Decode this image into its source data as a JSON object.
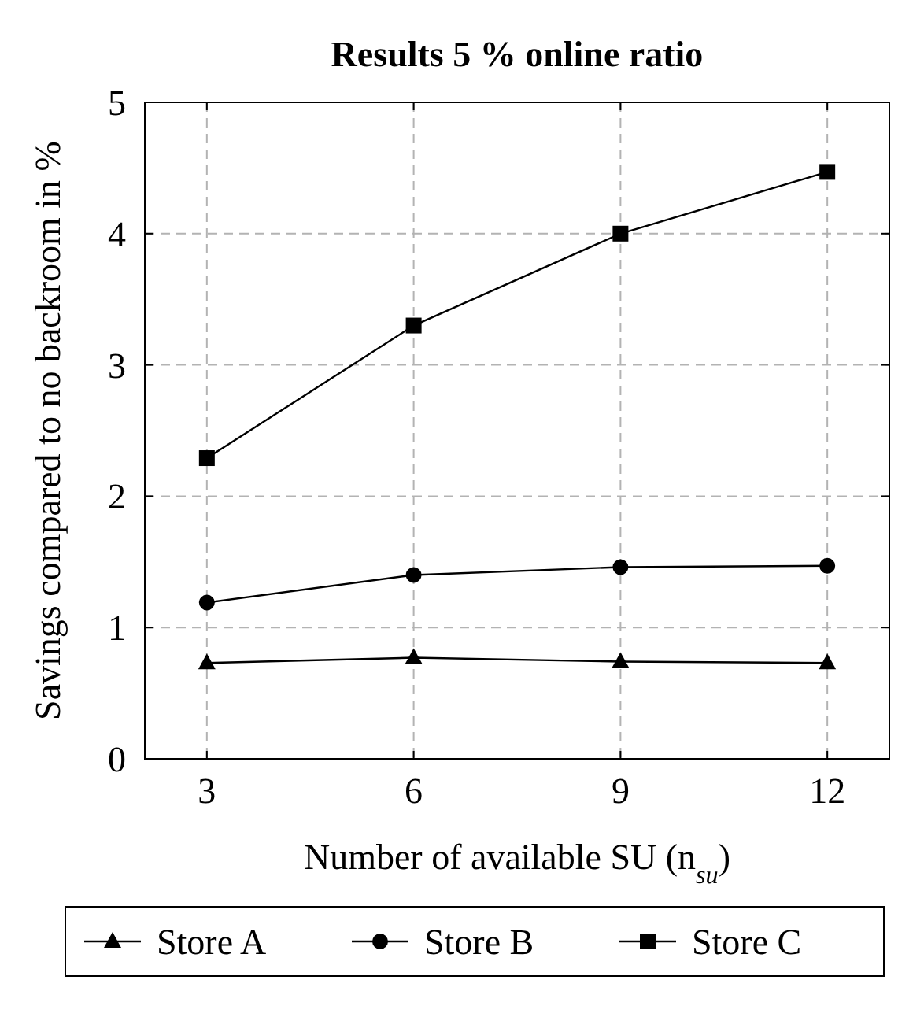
{
  "chart_data": {
    "type": "line",
    "title": "Results 5 % online ratio",
    "xlabel": "Number of available SU (n$_{su}$)",
    "ylabel": "Savings compared to no backroom in %",
    "x": [
      3,
      6,
      9,
      12
    ],
    "xlim": [
      2.1,
      12.9
    ],
    "xticks": [
      3,
      6,
      9,
      12
    ],
    "ylim": [
      0,
      5
    ],
    "yticks": [
      0,
      1,
      2,
      3,
      4,
      5
    ],
    "grid": true,
    "legend": "bottom",
    "line_style": "solid",
    "series": [
      {
        "name": "Store A",
        "color": "#000000",
        "marker": "triangle",
        "values": [
          0.73,
          0.77,
          0.74,
          0.73
        ]
      },
      {
        "name": "Store B",
        "color": "#000000",
        "marker": "circle",
        "values": [
          1.19,
          1.4,
          1.46,
          1.47
        ]
      },
      {
        "name": "Store C",
        "color": "#000000",
        "marker": "square",
        "values": [
          2.29,
          3.3,
          4.0,
          4.47
        ]
      }
    ]
  }
}
